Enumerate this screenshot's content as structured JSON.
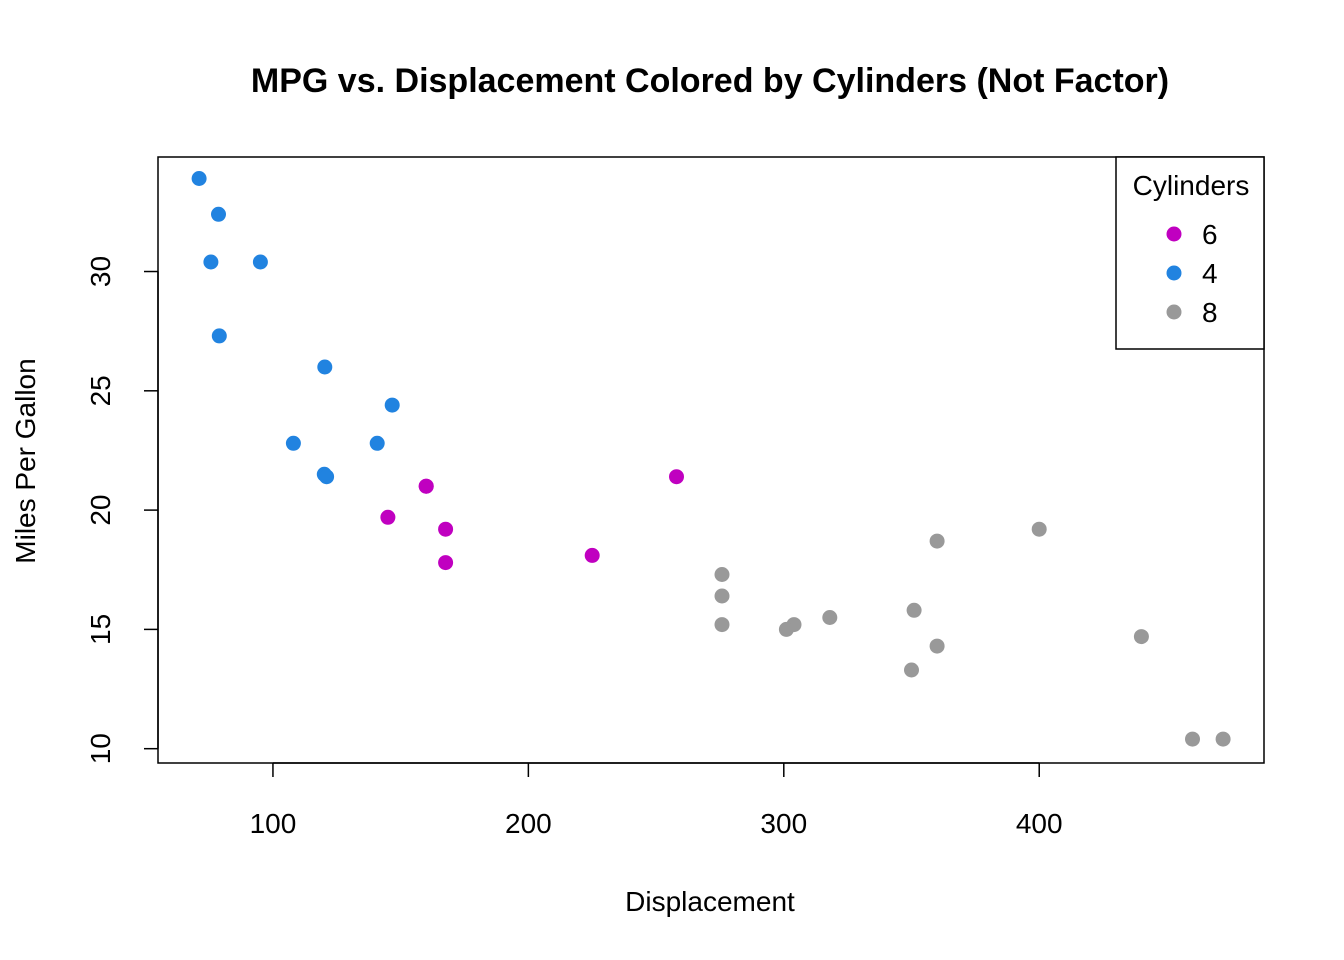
{
  "chart_data": {
    "type": "scatter",
    "title": "MPG vs. Displacement Colored by Cylinders (Not Factor)",
    "xlabel": "Displacement",
    "ylabel": "Miles Per Gallon",
    "xlim": [
      55,
      488
    ],
    "ylim": [
      9.4,
      34.8
    ],
    "x_ticks": [
      100,
      200,
      300,
      400
    ],
    "y_ticks": [
      10,
      15,
      20,
      25,
      30
    ],
    "grid": false,
    "legend": {
      "title": "Cylinders",
      "position": "top-right"
    },
    "series": [
      {
        "name": "6",
        "color": "#C000C0",
        "points": [
          [
            160,
            21.0
          ],
          [
            160,
            21.0
          ],
          [
            258,
            21.4
          ],
          [
            225,
            18.1
          ],
          [
            167.6,
            19.2
          ],
          [
            167.6,
            17.8
          ],
          [
            145,
            19.7
          ]
        ]
      },
      {
        "name": "4",
        "color": "#2183E0",
        "points": [
          [
            108,
            22.8
          ],
          [
            146.7,
            24.4
          ],
          [
            140.8,
            22.8
          ],
          [
            78.7,
            32.4
          ],
          [
            75.7,
            30.4
          ],
          [
            71.1,
            33.9
          ],
          [
            120.1,
            21.5
          ],
          [
            79,
            27.3
          ],
          [
            120.3,
            26.0
          ],
          [
            95.1,
            30.4
          ],
          [
            121,
            21.4
          ]
        ]
      },
      {
        "name": "8",
        "color": "#999999",
        "points": [
          [
            360,
            18.7
          ],
          [
            360,
            14.3
          ],
          [
            275.8,
            16.4
          ],
          [
            275.8,
            17.3
          ],
          [
            275.8,
            15.2
          ],
          [
            472,
            10.4
          ],
          [
            460,
            10.4
          ],
          [
            440,
            14.7
          ],
          [
            318,
            15.5
          ],
          [
            304,
            15.2
          ],
          [
            350,
            13.3
          ],
          [
            400,
            19.2
          ],
          [
            351,
            15.8
          ],
          [
            301,
            15.0
          ]
        ]
      }
    ]
  }
}
